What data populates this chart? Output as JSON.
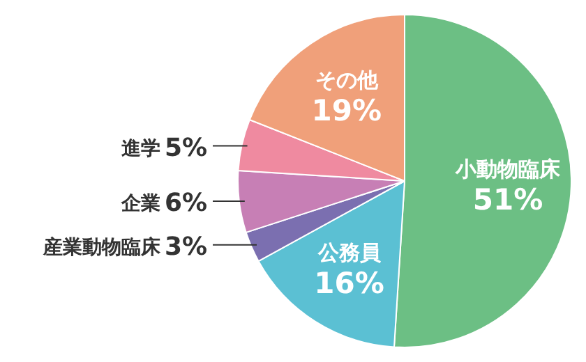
{
  "chart_data": {
    "type": "pie",
    "categories": [
      "小動物臨床",
      "公務員",
      "産業動物臨床",
      "企業",
      "進学",
      "その他"
    ],
    "values": [
      51,
      16,
      3,
      6,
      5,
      19
    ],
    "value_labels": [
      "51%",
      "16%",
      "3%",
      "6%",
      "5%",
      "19%"
    ],
    "colors": [
      "#6cbf84",
      "#5bc0d3",
      "#7b6fb0",
      "#c77fb5",
      "#ef8aa0",
      "#f0a07a"
    ],
    "legend": false
  }
}
